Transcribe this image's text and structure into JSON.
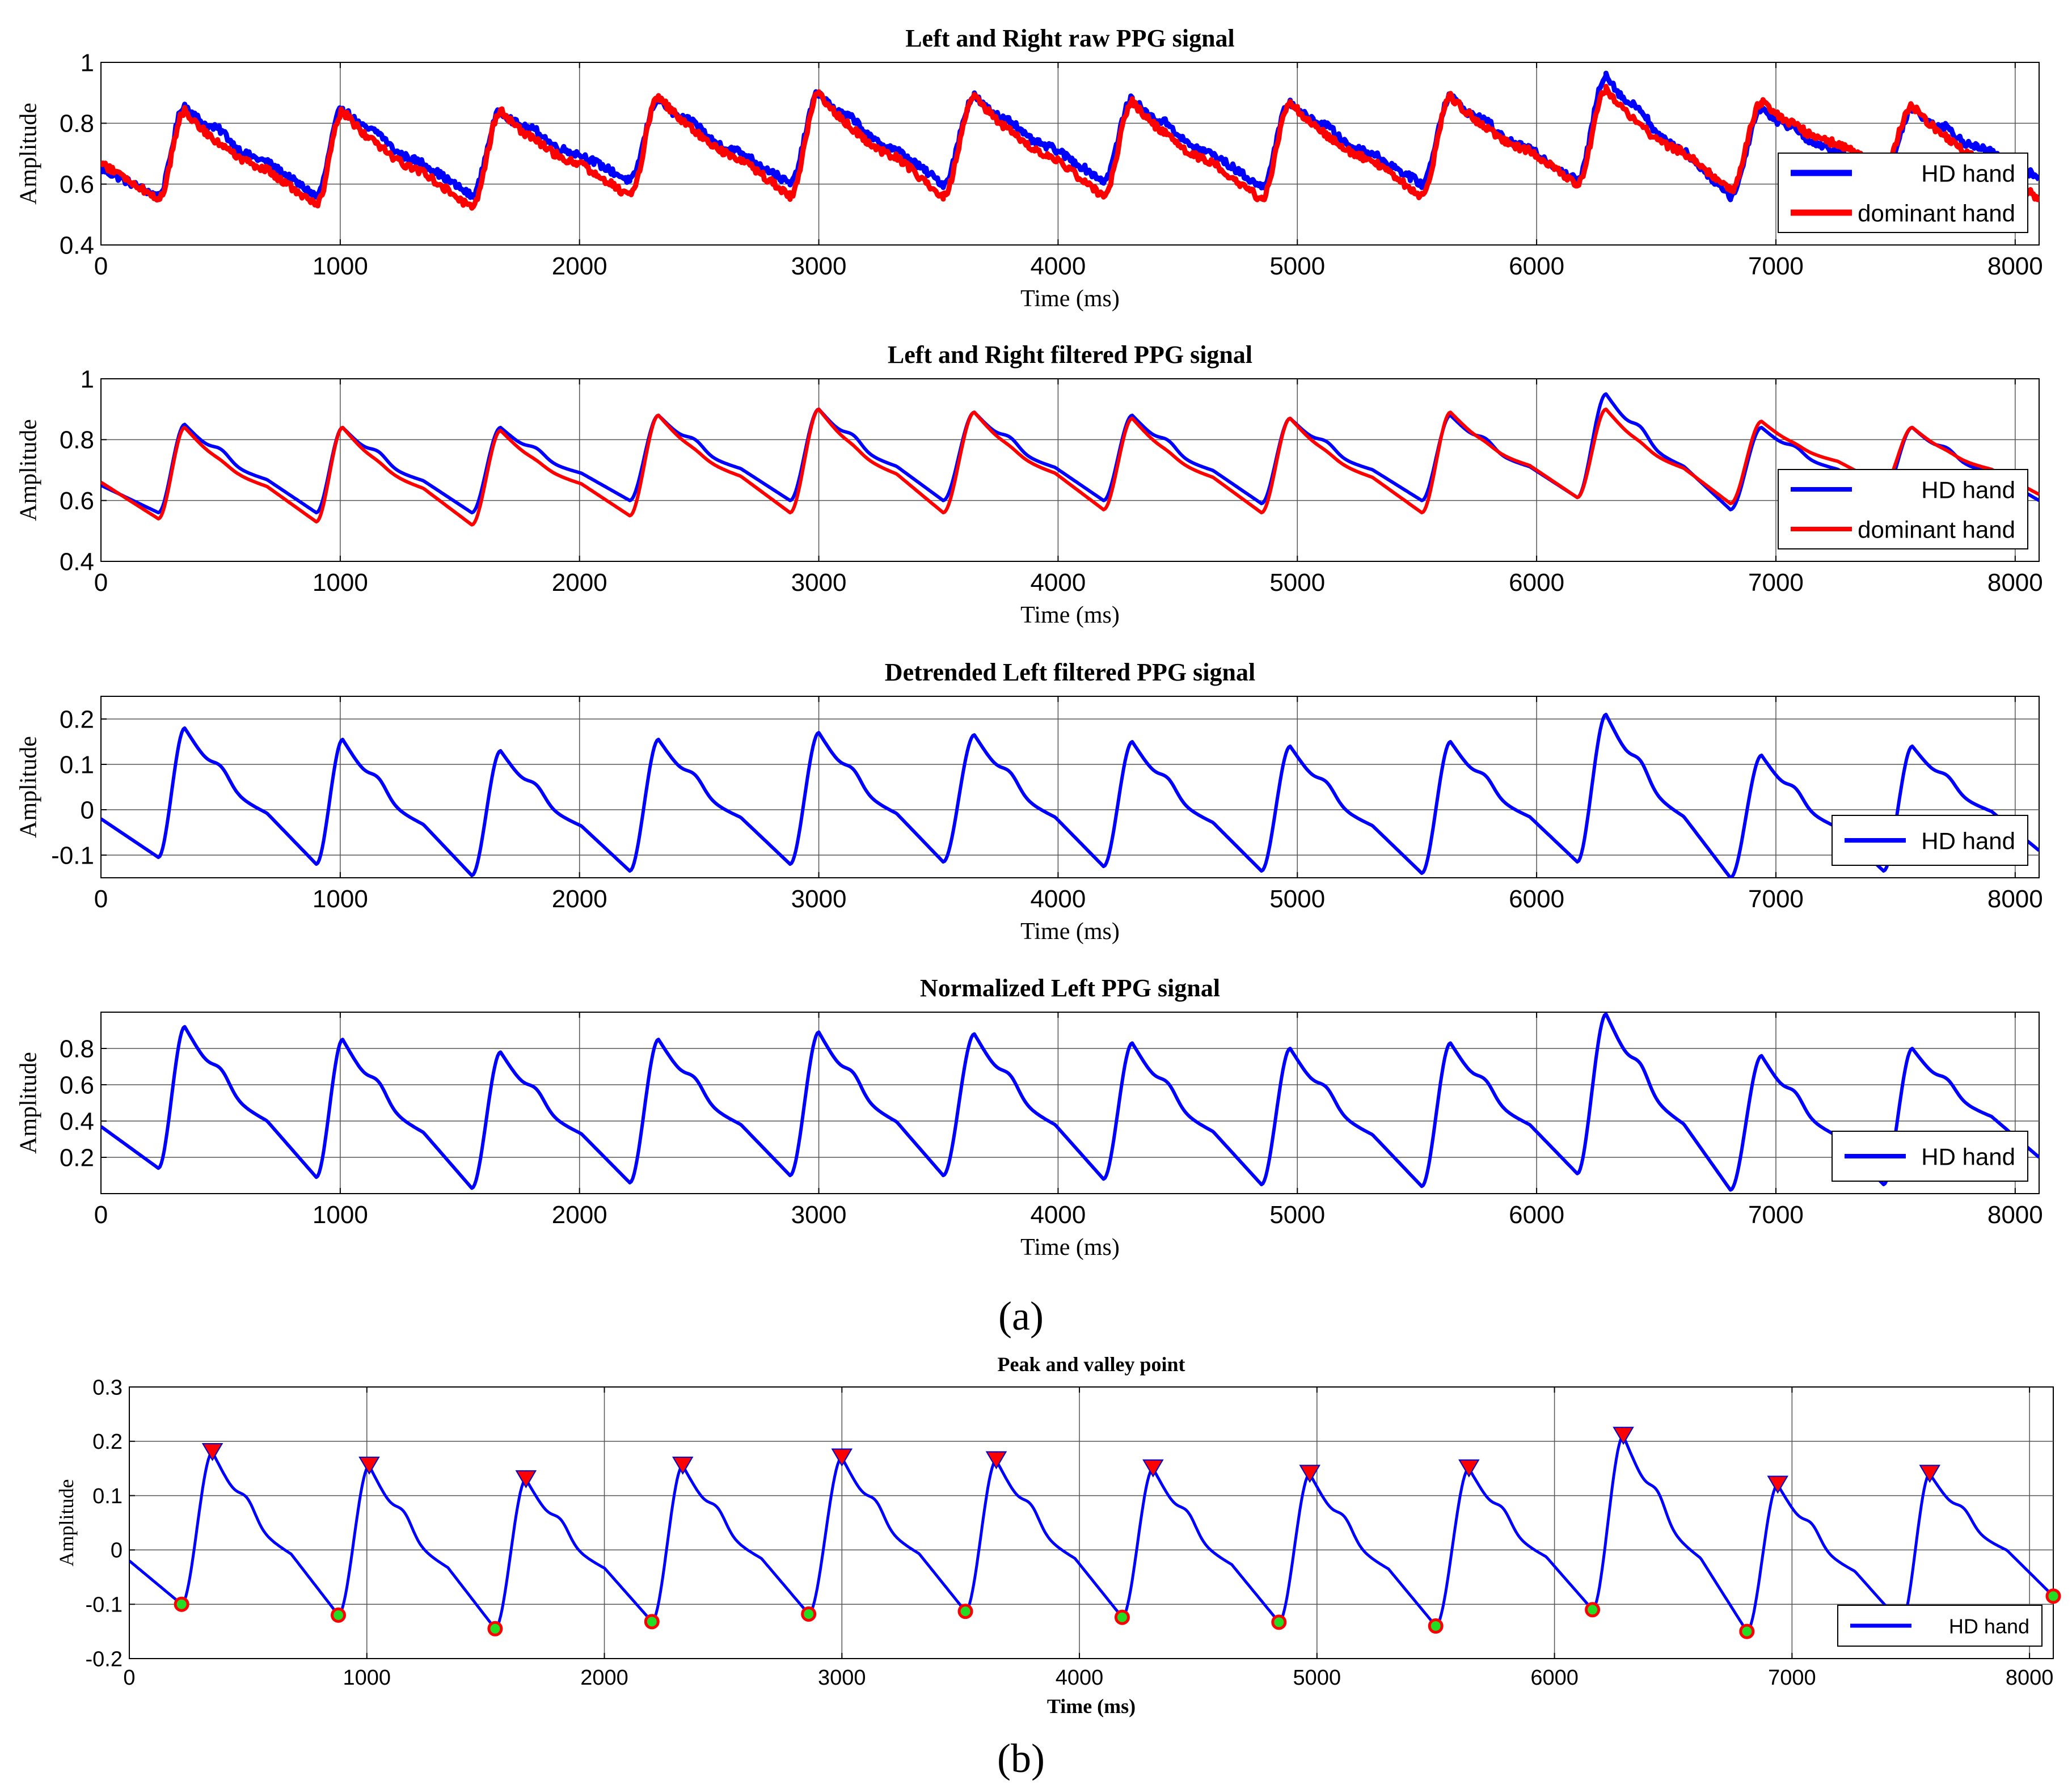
{
  "figure": {
    "label_a": "(a)",
    "label_b": "(b)"
  },
  "colors": {
    "hd": "#0000ff",
    "dominant": "#ff0000",
    "valley_fill": "#22dd22",
    "grid": "#000000"
  },
  "chart_data": [
    {
      "type": "line",
      "title": "Left and Right raw PPG signal",
      "xlabel": "Time (ms)",
      "ylabel": "Amplitude",
      "xlim": [
        0,
        8100
      ],
      "ylim": [
        0.4,
        1.0
      ],
      "xticks": [
        0,
        1000,
        2000,
        3000,
        4000,
        5000,
        6000,
        7000,
        8000
      ],
      "yticks": [
        0.4,
        0.6,
        0.8,
        1.0
      ],
      "ytick_labels": [
        "0.4",
        "0.6",
        "0.8",
        "1"
      ],
      "grid": true,
      "legend_position": "bottom-right",
      "beats": [
        {
          "v": 240,
          "p": 350
        },
        {
          "v": 900,
          "p": 1010
        },
        {
          "v": 1550,
          "p": 1670
        },
        {
          "v": 2210,
          "p": 2330
        },
        {
          "v": 2880,
          "p": 3000
        },
        {
          "v": 3520,
          "p": 3650
        },
        {
          "v": 4190,
          "p": 4310
        },
        {
          "v": 4850,
          "p": 4970
        },
        {
          "v": 5520,
          "p": 5640
        },
        {
          "v": 6170,
          "p": 6290
        },
        {
          "v": 6810,
          "p": 6940
        },
        {
          "v": 7450,
          "p": 7570
        }
      ],
      "series": [
        {
          "name": "HD hand",
          "color": "#0000ff",
          "start": 0.65,
          "valleys": [
            0.56,
            0.56,
            0.56,
            0.61,
            0.6,
            0.6,
            0.61,
            0.59,
            0.6,
            0.61,
            0.56,
            0.62
          ],
          "peaks": [
            0.86,
            0.85,
            0.84,
            0.88,
            0.9,
            0.89,
            0.88,
            0.87,
            0.89,
            0.96,
            0.85,
            0.85
          ],
          "end": 0.62,
          "noise": 0.012,
          "dicrotic": 0.35
        },
        {
          "name": "dominant hand",
          "color": "#ff0000",
          "start": 0.67,
          "valleys": [
            0.55,
            0.53,
            0.52,
            0.56,
            0.56,
            0.56,
            0.56,
            0.55,
            0.56,
            0.6,
            0.58,
            0.65
          ],
          "peaks": [
            0.84,
            0.84,
            0.84,
            0.89,
            0.9,
            0.89,
            0.87,
            0.87,
            0.89,
            0.91,
            0.87,
            0.86
          ],
          "end": 0.55,
          "noise": 0.012,
          "dicrotic": 0.1
        }
      ]
    },
    {
      "type": "line",
      "title": "Left and Right filtered PPG signal",
      "xlabel": "Time (ms)",
      "ylabel": "Amplitude",
      "xlim": [
        0,
        8100
      ],
      "ylim": [
        0.4,
        1.0
      ],
      "xticks": [
        0,
        1000,
        2000,
        3000,
        4000,
        5000,
        6000,
        7000,
        8000
      ],
      "yticks": [
        0.4,
        0.6,
        0.8,
        1.0
      ],
      "ytick_labels": [
        "0.4",
        "0.6",
        "0.8",
        "1"
      ],
      "grid": true,
      "legend_position": "bottom-right",
      "beats": [
        {
          "v": 240,
          "p": 350
        },
        {
          "v": 900,
          "p": 1010
        },
        {
          "v": 1550,
          "p": 1670
        },
        {
          "v": 2210,
          "p": 2330
        },
        {
          "v": 2880,
          "p": 3000
        },
        {
          "v": 3520,
          "p": 3650
        },
        {
          "v": 4190,
          "p": 4310
        },
        {
          "v": 4850,
          "p": 4970
        },
        {
          "v": 5520,
          "p": 5640
        },
        {
          "v": 6170,
          "p": 6290
        },
        {
          "v": 6810,
          "p": 6940
        },
        {
          "v": 7450,
          "p": 7570
        }
      ],
      "series": [
        {
          "name": "HD hand",
          "color": "#0000ff",
          "start": 0.65,
          "valleys": [
            0.56,
            0.56,
            0.56,
            0.6,
            0.6,
            0.6,
            0.6,
            0.59,
            0.6,
            0.61,
            0.57,
            0.62
          ],
          "peaks": [
            0.85,
            0.84,
            0.84,
            0.88,
            0.9,
            0.89,
            0.88,
            0.87,
            0.88,
            0.95,
            0.84,
            0.84
          ],
          "end": 0.6,
          "noise": 0,
          "dicrotic": 0.35
        },
        {
          "name": "dominant hand",
          "color": "#ff0000",
          "start": 0.66,
          "valleys": [
            0.54,
            0.53,
            0.52,
            0.55,
            0.56,
            0.56,
            0.57,
            0.56,
            0.56,
            0.61,
            0.59,
            0.65
          ],
          "peaks": [
            0.84,
            0.84,
            0.83,
            0.88,
            0.9,
            0.89,
            0.87,
            0.87,
            0.89,
            0.9,
            0.86,
            0.84
          ],
          "end": 0.62,
          "noise": 0,
          "dicrotic": 0.1
        }
      ]
    },
    {
      "type": "line",
      "title": "Detrended Left filtered PPG signal",
      "xlabel": "Time (ms)",
      "ylabel": "Amplitude",
      "xlim": [
        0,
        8100
      ],
      "ylim": [
        -0.15,
        0.25
      ],
      "xticks": [
        0,
        1000,
        2000,
        3000,
        4000,
        5000,
        6000,
        7000,
        8000
      ],
      "yticks": [
        -0.1,
        0,
        0.1,
        0.2
      ],
      "ytick_labels": [
        "-0.1",
        "0",
        "0.1",
        "0.2"
      ],
      "grid": true,
      "legend_position": "bottom-right",
      "beats": [
        {
          "v": 240,
          "p": 350
        },
        {
          "v": 900,
          "p": 1010
        },
        {
          "v": 1550,
          "p": 1670
        },
        {
          "v": 2210,
          "p": 2330
        },
        {
          "v": 2880,
          "p": 3000
        },
        {
          "v": 3520,
          "p": 3650
        },
        {
          "v": 4190,
          "p": 4310
        },
        {
          "v": 4850,
          "p": 4970
        },
        {
          "v": 5520,
          "p": 5640
        },
        {
          "v": 6170,
          "p": 6290
        },
        {
          "v": 6810,
          "p": 6940
        },
        {
          "v": 7450,
          "p": 7570
        }
      ],
      "series": [
        {
          "name": "HD hand",
          "color": "#0000ff",
          "start": -0.02,
          "valleys": [
            -0.105,
            -0.12,
            -0.145,
            -0.135,
            -0.12,
            -0.115,
            -0.125,
            -0.135,
            -0.14,
            -0.115,
            -0.15,
            -0.135
          ],
          "peaks": [
            0.18,
            0.155,
            0.13,
            0.155,
            0.17,
            0.165,
            0.15,
            0.14,
            0.15,
            0.21,
            0.12,
            0.14
          ],
          "end": -0.09,
          "noise": 0,
          "dicrotic": 0.35
        }
      ]
    },
    {
      "type": "line",
      "title": "Normalized Left PPG signal",
      "xlabel": "Time (ms)",
      "ylabel": "Amplitude",
      "xlim": [
        0,
        8100
      ],
      "ylim": [
        0,
        1.0
      ],
      "xticks": [
        0,
        1000,
        2000,
        3000,
        4000,
        5000,
        6000,
        7000,
        8000
      ],
      "yticks": [
        0.2,
        0.4,
        0.6,
        0.8
      ],
      "ytick_labels": [
        "0.2",
        "0.4",
        "0.6",
        "0.8"
      ],
      "grid": true,
      "legend_position": "bottom-right",
      "beats": [
        {
          "v": 240,
          "p": 350
        },
        {
          "v": 900,
          "p": 1010
        },
        {
          "v": 1550,
          "p": 1670
        },
        {
          "v": 2210,
          "p": 2330
        },
        {
          "v": 2880,
          "p": 3000
        },
        {
          "v": 3520,
          "p": 3650
        },
        {
          "v": 4190,
          "p": 4310
        },
        {
          "v": 4850,
          "p": 4970
        },
        {
          "v": 5520,
          "p": 5640
        },
        {
          "v": 6170,
          "p": 6290
        },
        {
          "v": 6810,
          "p": 6940
        },
        {
          "v": 7450,
          "p": 7570
        }
      ],
      "series": [
        {
          "name": "HD hand",
          "color": "#0000ff",
          "start": 0.37,
          "valleys": [
            0.14,
            0.09,
            0.03,
            0.06,
            0.1,
            0.1,
            0.08,
            0.05,
            0.04,
            0.11,
            0.02,
            0.05
          ],
          "peaks": [
            0.92,
            0.85,
            0.78,
            0.85,
            0.89,
            0.88,
            0.83,
            0.8,
            0.83,
            0.99,
            0.76,
            0.8
          ],
          "end": 0.2,
          "noise": 0,
          "dicrotic": 0.35
        }
      ]
    },
    {
      "type": "line",
      "title": "Peak and valley point",
      "xlabel": "Time (ms)",
      "ylabel": "Amplitude",
      "xlim": [
        0,
        8100
      ],
      "ylim": [
        -0.2,
        0.3
      ],
      "xticks": [
        0,
        1000,
        2000,
        3000,
        4000,
        5000,
        6000,
        7000,
        8000
      ],
      "yticks": [
        -0.2,
        -0.1,
        0,
        0.1,
        0.2,
        0.3
      ],
      "ytick_labels": [
        "-0.2",
        "-0.1",
        "0",
        "0.1",
        "0.2",
        "0.3"
      ],
      "grid": true,
      "legend_position": "bottom-right",
      "beats": [
        {
          "v": 220,
          "p": 350
        },
        {
          "v": 880,
          "p": 1010
        },
        {
          "v": 1540,
          "p": 1670
        },
        {
          "v": 2200,
          "p": 2330
        },
        {
          "v": 2860,
          "p": 3000
        },
        {
          "v": 3520,
          "p": 3650
        },
        {
          "v": 4180,
          "p": 4310
        },
        {
          "v": 4840,
          "p": 4970
        },
        {
          "v": 5500,
          "p": 5640
        },
        {
          "v": 6160,
          "p": 6290
        },
        {
          "v": 6810,
          "p": 6940
        },
        {
          "v": 7460,
          "p": 7580
        }
      ],
      "series": [
        {
          "name": "HD hand",
          "color": "#0000ff",
          "start": -0.02,
          "valleys": [
            -0.1,
            -0.12,
            -0.145,
            -0.132,
            -0.118,
            -0.113,
            -0.124,
            -0.133,
            -0.14,
            -0.11,
            -0.15,
            -0.135
          ],
          "peaks": [
            0.18,
            0.155,
            0.13,
            0.155,
            0.17,
            0.165,
            0.15,
            0.14,
            0.15,
            0.21,
            0.12,
            0.14
          ],
          "end": -0.085,
          "noise": 0,
          "dicrotic": 0.35
        }
      ],
      "peak_markers": [
        [
          350,
          0.18
        ],
        [
          1010,
          0.155
        ],
        [
          1670,
          0.13
        ],
        [
          2330,
          0.155
        ],
        [
          3000,
          0.17
        ],
        [
          3650,
          0.165
        ],
        [
          4310,
          0.15
        ],
        [
          4970,
          0.14
        ],
        [
          5640,
          0.15
        ],
        [
          6290,
          0.21
        ],
        [
          6940,
          0.12
        ],
        [
          7580,
          0.14
        ]
      ],
      "valley_markers": [
        [
          220,
          -0.1
        ],
        [
          880,
          -0.12
        ],
        [
          1540,
          -0.145
        ],
        [
          2200,
          -0.132
        ],
        [
          2860,
          -0.118
        ],
        [
          3520,
          -0.113
        ],
        [
          4180,
          -0.124
        ],
        [
          4840,
          -0.133
        ],
        [
          5500,
          -0.14
        ],
        [
          6160,
          -0.11
        ],
        [
          6810,
          -0.15
        ],
        [
          8100,
          -0.085
        ]
      ]
    }
  ]
}
